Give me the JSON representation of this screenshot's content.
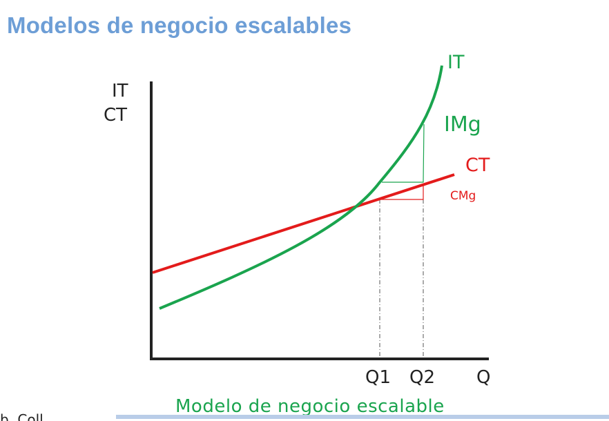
{
  "title": "Modelos de negocio escalables",
  "diagram": {
    "y_axis_labels": [
      "IT",
      "CT"
    ],
    "x_axis_label": "Q",
    "curve_labels": {
      "it": "IT",
      "img": "IMg",
      "ct": "CT",
      "cmg": "CMg"
    },
    "quantity_marks": [
      "Q1",
      "Q2"
    ],
    "colors": {
      "it_curve": "#1aa44e",
      "ct_line": "#e31b1b",
      "axes": "#222222",
      "guides": "#555555"
    }
  },
  "caption": "Modelo de negocio escalable",
  "edge_text": "b. Coll"
}
